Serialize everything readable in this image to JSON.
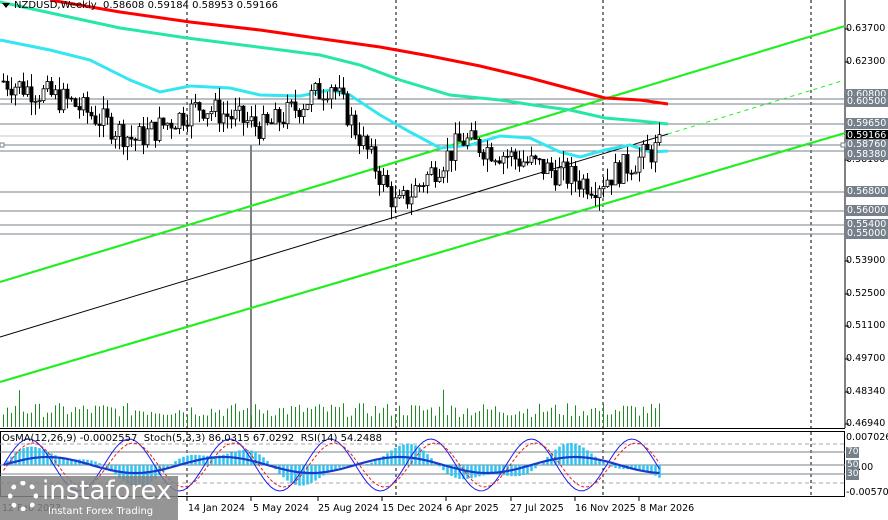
{
  "header": {
    "symbol": "NZDUSD,Weekly",
    "ohlc": "0.58608 0.59184 0.58953 0.59166"
  },
  "indicator_header": {
    "osma": "OsMA(12,26,9) -0.0002557",
    "stoch": "Stoch(5,3,3) 86.0315 67.0292",
    "rsi": "RSI(14) 54.2488"
  },
  "price_axis": {
    "ticks": [
      "0.63700",
      "0.62300",
      "0.58100",
      "0.53900",
      "0.52500",
      "0.51100",
      "0.49700",
      "0.48340",
      "0.46940"
    ],
    "tags": [
      {
        "label": "0.60800",
        "kind": "level"
      },
      {
        "label": "0.60500",
        "kind": "level"
      },
      {
        "label": "0.59650",
        "kind": "level"
      },
      {
        "label": "0.59166",
        "kind": "current"
      },
      {
        "label": "0.58760",
        "kind": "level"
      },
      {
        "label": "0.58380",
        "kind": "level"
      },
      {
        "label": "0.56800",
        "kind": "level"
      },
      {
        "label": "0.56000",
        "kind": "level"
      },
      {
        "label": "0.55400",
        "kind": "level"
      },
      {
        "label": "0.55000",
        "kind": "level"
      }
    ]
  },
  "sub_axis": {
    "top": "0.007026",
    "zero": "0.00",
    "bottom": "-0.005700",
    "levels": [
      "80",
      "70",
      "50",
      "30",
      "20"
    ]
  },
  "time_axis": [
    "12 Feb 2023",
    "4 Jun 2023",
    "24 Sep 2023",
    "14 Jan 2024",
    "5 May 2024",
    "25 Aug 2024",
    "15 Dec 2024",
    "6 Apr 2025",
    "27 Jul 2025",
    "16 Nov 2025",
    "8 Mar 2026"
  ],
  "watermark": {
    "brand": "instaforex",
    "tagline": "Instant Forex Trading"
  },
  "colors": {
    "ma_red": "#ff0000",
    "ma_green": "#26e6a8",
    "ma_cyan": "#33e6f2",
    "channel": "#22ee22",
    "levels": "#75808a",
    "osma": "#2ec4f0",
    "stoch_main": "#1a1aee",
    "stoch_signal": "#ee1a1a",
    "rsi": "#1a3acc",
    "volume": "#1f8a1f"
  },
  "chart_data": {
    "type": "candlestick",
    "title": "NZDUSD, Weekly",
    "symbol": "NZDUSD",
    "timeframe": "Weekly",
    "last_bar": {
      "open": 0.58608,
      "high": 0.59184,
      "low": 0.58953,
      "close": 0.59166
    },
    "ylim": [
      0.4694,
      0.644
    ],
    "x_tick_labels": [
      "12 Feb 2023",
      "4 Jun 2023",
      "24 Sep 2023",
      "14 Jan 2024",
      "5 May 2024",
      "25 Aug 2024",
      "15 Dec 2024",
      "6 Apr 2025",
      "27 Jul 2025",
      "16 Nov 2025",
      "8 Mar 2026"
    ],
    "y_tick_labels": [
      "0.63700",
      "0.62300",
      "0.58100",
      "0.53900",
      "0.52500",
      "0.51100",
      "0.49700",
      "0.48340",
      "0.46940"
    ],
    "horizontal_levels": [
      0.608,
      0.605,
      0.5965,
      0.5876,
      0.5838,
      0.568,
      0.56,
      0.554,
      0.55
    ],
    "moving_averages": [
      {
        "name": "MA red (200)",
        "color": "#ff0000",
        "approx_end": 0.6045
      },
      {
        "name": "MA green (144)",
        "color": "#26e6a8",
        "approx_end": 0.5965
      },
      {
        "name": "MA cyan (50)",
        "color": "#33e6f2",
        "approx_end": 0.5876
      }
    ],
    "close_series_approx": {
      "x": [
        "2023-02",
        "2023-06",
        "2023-09",
        "2024-01",
        "2024-05",
        "2024-08",
        "2024-12",
        "2025-04",
        "2025-07",
        "2025-11",
        "2026-03"
      ],
      "values": [
        0.621,
        0.612,
        0.595,
        0.61,
        0.6,
        0.62,
        0.565,
        0.595,
        0.585,
        0.575,
        0.5917
      ]
    },
    "indicators": {
      "OsMA(12,26,9)": -0.0002557,
      "Stoch(5,3,3)": [
        86.0315,
        67.0292
      ],
      "RSI(14)": 54.2488,
      "sub_ylim": [
        -0.0057,
        0.007026
      ],
      "levels": [
        80,
        70,
        50,
        30,
        20
      ]
    }
  }
}
